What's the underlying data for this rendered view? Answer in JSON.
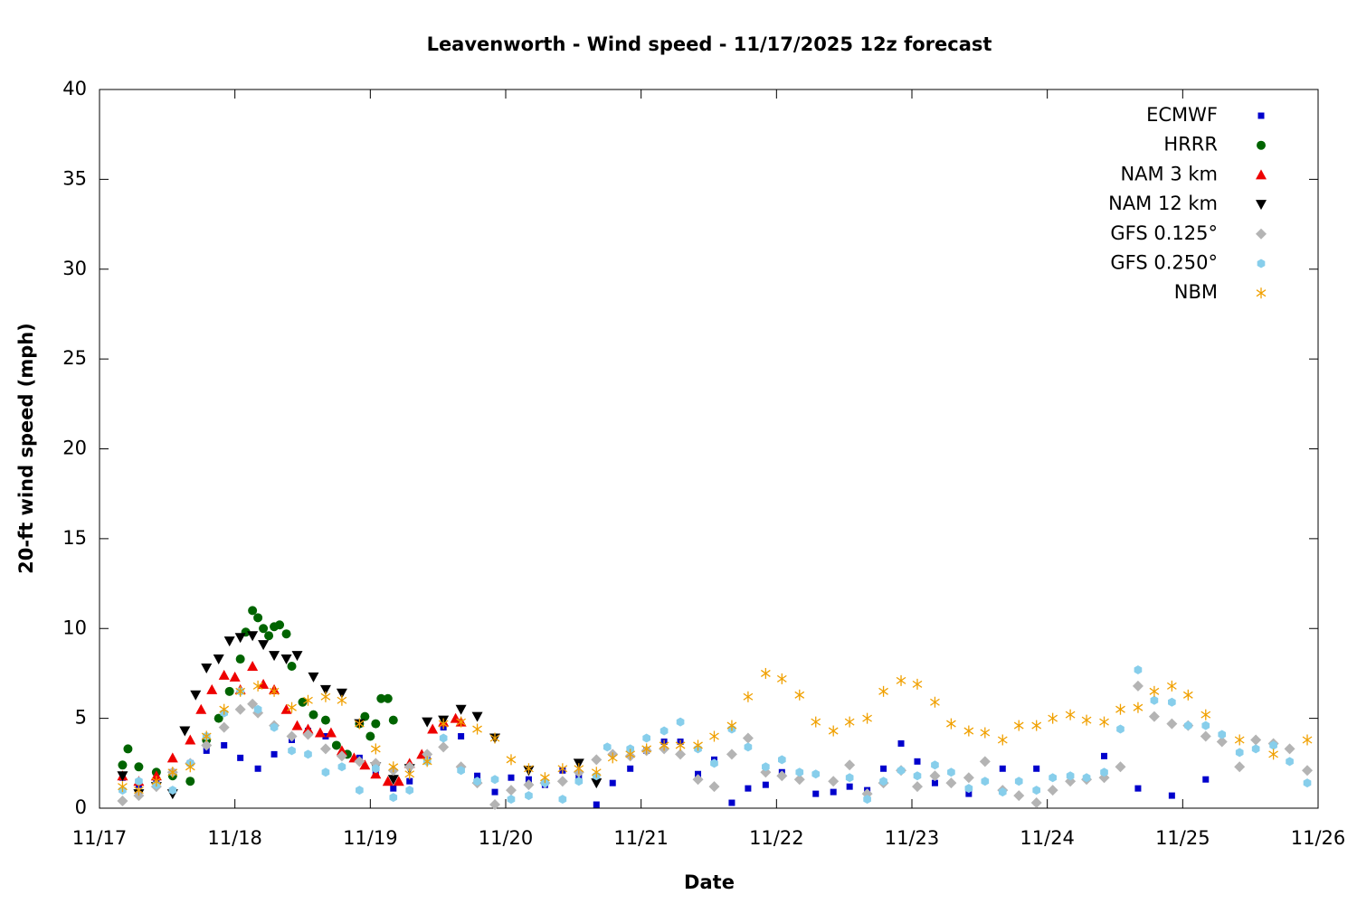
{
  "chart_data": {
    "type": "scatter",
    "title": "Leavenworth - Wind speed - 11/17/2025 12z forecast",
    "x_label": "Date",
    "y_label": "20-ft wind speed (mph)",
    "xlim": [
      17,
      26
    ],
    "xticks": [
      {
        "value": 17,
        "label": "11/17"
      },
      {
        "value": 18,
        "label": "11/18"
      },
      {
        "value": 19,
        "label": "11/19"
      },
      {
        "value": 20,
        "label": "11/20"
      },
      {
        "value": 21,
        "label": "11/21"
      },
      {
        "value": 22,
        "label": "11/22"
      },
      {
        "value": 23,
        "label": "11/23"
      },
      {
        "value": 24,
        "label": "11/24"
      },
      {
        "value": 25,
        "label": "11/25"
      },
      {
        "value": 26,
        "label": "11/26"
      }
    ],
    "ylim": [
      0,
      40
    ],
    "yticks": [
      0,
      5,
      10,
      15,
      20,
      25,
      30,
      35,
      40
    ],
    "legend": "top-right",
    "series": [
      {
        "name": "ECMWF",
        "color": "#0000cc",
        "marker": "square",
        "x": [
          17.17,
          17.29,
          17.42,
          17.54,
          17.67,
          17.79,
          17.92,
          18.04,
          18.17,
          18.29,
          18.42,
          18.54,
          18.67,
          18.79,
          18.92,
          19.04,
          19.17,
          19.29,
          19.42,
          19.54,
          19.67,
          19.79,
          19.92,
          20.04,
          20.17,
          20.29,
          20.42,
          20.54,
          20.67,
          20.79,
          20.92,
          21.04,
          21.17,
          21.29,
          21.42,
          21.54,
          21.67,
          21.79,
          21.92,
          22.04,
          22.29,
          22.42,
          22.54,
          22.67,
          22.79,
          22.92,
          23.04,
          23.17,
          23.42,
          23.67,
          23.92,
          24.42,
          24.67,
          24.92,
          25.17
        ],
        "values": [
          1.7,
          1.3,
          1.5,
          2.0,
          2.5,
          3.2,
          3.5,
          2.8,
          2.2,
          3.0,
          3.8,
          4.3,
          4.0,
          3.0,
          2.8,
          2.0,
          1.1,
          1.5,
          2.8,
          4.5,
          4.0,
          1.8,
          0.9,
          1.7,
          1.6,
          1.3,
          2.1,
          1.8,
          0.2,
          1.4,
          2.2,
          3.2,
          3.7,
          3.7,
          1.9,
          2.7,
          0.3,
          1.1,
          1.3,
          2.0,
          0.8,
          0.9,
          1.2,
          1.0,
          2.2,
          3.6,
          2.6,
          1.4,
          0.8,
          2.2,
          2.2,
          2.9,
          1.1,
          0.7,
          1.6
        ]
      },
      {
        "name": "HRRR",
        "color": "#006400",
        "marker": "circle",
        "x": [
          17.17,
          17.21,
          17.29,
          17.42,
          17.54,
          17.67,
          17.79,
          17.88,
          17.96,
          18.04,
          18.08,
          18.13,
          18.17,
          18.21,
          18.25,
          18.29,
          18.33,
          18.38,
          18.42,
          18.5,
          18.58,
          18.67,
          18.75,
          18.83,
          18.92,
          18.96,
          19.0,
          19.04,
          19.08,
          19.13,
          19.17
        ],
        "values": [
          2.4,
          3.3,
          2.3,
          2.0,
          1.8,
          1.5,
          3.8,
          5.0,
          6.5,
          8.3,
          9.8,
          11.0,
          10.6,
          10.0,
          9.6,
          10.1,
          10.2,
          9.7,
          7.9,
          5.9,
          5.2,
          4.9,
          3.5,
          3.0,
          4.7,
          5.1,
          4.0,
          4.7,
          6.1,
          6.1,
          4.9
        ]
      },
      {
        "name": "NAM 3 km",
        "color": "#ee0000",
        "marker": "triangle",
        "x": [
          17.17,
          17.29,
          17.42,
          17.54,
          17.67,
          17.75,
          17.83,
          17.92,
          18.0,
          18.04,
          18.13,
          18.21,
          18.29,
          18.38,
          18.46,
          18.54,
          18.63,
          18.71,
          18.79,
          18.88,
          18.96,
          19.04,
          19.13,
          19.21,
          19.29,
          19.38,
          19.46,
          19.54,
          19.63,
          19.67
        ],
        "values": [
          1.8,
          1.5,
          1.8,
          2.8,
          3.8,
          5.5,
          6.6,
          7.4,
          7.3,
          6.6,
          7.9,
          6.9,
          6.6,
          5.5,
          4.6,
          4.4,
          4.2,
          4.2,
          3.2,
          2.8,
          2.4,
          1.9,
          1.5,
          1.5,
          2.5,
          3.0,
          4.4,
          4.8,
          5.0,
          4.8
        ]
      },
      {
        "name": "NAM 12 km",
        "color": "#000000",
        "marker": "triangle-down",
        "x": [
          17.17,
          17.29,
          17.42,
          17.54,
          17.63,
          17.71,
          17.79,
          17.88,
          17.96,
          18.04,
          18.13,
          18.21,
          18.29,
          18.38,
          18.46,
          18.58,
          18.67,
          18.79,
          18.92,
          19.04,
          19.17,
          19.29,
          19.42,
          19.54,
          19.67,
          19.79,
          19.92,
          20.17,
          20.54,
          20.67
        ],
        "values": [
          1.8,
          0.8,
          1.2,
          0.8,
          4.3,
          6.3,
          7.8,
          8.3,
          9.3,
          9.5,
          9.6,
          9.1,
          8.5,
          8.3,
          8.5,
          7.3,
          6.6,
          6.4,
          4.7,
          2.3,
          1.6,
          2.2,
          4.8,
          4.9,
          5.5,
          5.1,
          3.9,
          2.1,
          2.5,
          1.4
        ]
      },
      {
        "name": "GFS 0.125°",
        "color": "#b4b4b4",
        "marker": "diamond",
        "x": [
          17.17,
          17.29,
          17.42,
          17.54,
          17.67,
          17.79,
          17.92,
          18.04,
          18.13,
          18.17,
          18.29,
          18.42,
          18.54,
          18.67,
          18.79,
          18.92,
          19.04,
          19.17,
          19.29,
          19.42,
          19.54,
          19.67,
          19.79,
          19.92,
          20.04,
          20.17,
          20.29,
          20.42,
          20.54,
          20.67,
          20.79,
          20.92,
          21.04,
          21.17,
          21.29,
          21.42,
          21.54,
          21.67,
          21.79,
          21.92,
          22.04,
          22.17,
          22.42,
          22.54,
          22.67,
          22.79,
          22.92,
          23.04,
          23.17,
          23.29,
          23.42,
          23.54,
          23.67,
          23.79,
          23.92,
          24.04,
          24.17,
          24.29,
          24.42,
          24.54,
          24.67,
          24.79,
          24.92,
          25.04,
          25.17,
          25.29,
          25.42,
          25.54,
          25.67,
          25.79,
          25.92
        ],
        "values": [
          0.4,
          0.7,
          1.2,
          2.0,
          2.5,
          3.5,
          4.5,
          5.5,
          5.8,
          5.3,
          4.6,
          4.0,
          4.1,
          3.3,
          2.9,
          2.6,
          2.5,
          2.1,
          2.3,
          3.0,
          3.4,
          2.3,
          1.4,
          0.2,
          1.0,
          1.3,
          1.4,
          1.5,
          2.0,
          2.7,
          3.0,
          2.9,
          3.2,
          3.3,
          3.0,
          1.6,
          1.2,
          3.0,
          3.9,
          2.0,
          1.8,
          1.6,
          1.5,
          2.4,
          0.8,
          1.4,
          2.1,
          1.2,
          1.8,
          1.4,
          1.7,
          2.6,
          1.0,
          0.7,
          0.3,
          1.0,
          1.5,
          1.6,
          1.7,
          2.3,
          6.8,
          5.1,
          4.7,
          4.6,
          4.0,
          3.7,
          2.3,
          3.8,
          3.6,
          3.3,
          2.1
        ]
      },
      {
        "name": "GFS 0.250°",
        "color": "#87ceeb",
        "marker": "hexagon",
        "x": [
          17.17,
          17.29,
          17.42,
          17.54,
          17.67,
          17.79,
          17.92,
          18.04,
          18.17,
          18.29,
          18.42,
          18.54,
          18.67,
          18.79,
          18.92,
          19.04,
          19.17,
          19.29,
          19.42,
          19.54,
          19.67,
          19.79,
          19.92,
          20.04,
          20.17,
          20.29,
          20.42,
          20.54,
          20.67,
          20.75,
          20.92,
          21.04,
          21.17,
          21.29,
          21.42,
          21.54,
          21.67,
          21.79,
          21.92,
          22.04,
          22.17,
          22.29,
          22.54,
          22.67,
          22.79,
          22.92,
          23.04,
          23.17,
          23.29,
          23.42,
          23.54,
          23.67,
          23.79,
          23.92,
          24.04,
          24.17,
          24.29,
          24.42,
          24.54,
          24.67,
          24.79,
          24.92,
          25.04,
          25.17,
          25.29,
          25.42,
          25.54,
          25.67,
          25.79,
          25.92
        ],
        "values": [
          1.0,
          1.5,
          1.3,
          1.0,
          2.5,
          4.0,
          5.3,
          6.5,
          5.5,
          4.5,
          3.2,
          3.0,
          2.0,
          2.3,
          1.0,
          2.2,
          0.6,
          1.0,
          2.6,
          3.9,
          2.1,
          1.5,
          1.6,
          0.5,
          0.7,
          1.4,
          0.5,
          1.5,
          1.8,
          3.4,
          3.3,
          3.9,
          4.3,
          4.8,
          3.3,
          2.5,
          4.4,
          3.4,
          2.3,
          2.7,
          2.0,
          1.9,
          1.7,
          0.5,
          1.5,
          2.1,
          1.8,
          2.4,
          2.0,
          1.1,
          1.5,
          0.9,
          1.5,
          1.0,
          1.7,
          1.8,
          1.7,
          2.0,
          4.4,
          7.7,
          6.0,
          5.9,
          4.6,
          4.6,
          4.1,
          3.1,
          3.3,
          3.5,
          2.6,
          1.4
        ]
      },
      {
        "name": "NBM",
        "color": "#f0a000",
        "marker": "asterisk",
        "x": [
          17.17,
          17.29,
          17.42,
          17.54,
          17.67,
          17.79,
          17.92,
          18.04,
          18.17,
          18.29,
          18.42,
          18.54,
          18.67,
          18.79,
          18.92,
          19.04,
          19.17,
          19.29,
          19.42,
          19.54,
          19.67,
          19.79,
          19.92,
          20.04,
          20.17,
          20.29,
          20.42,
          20.54,
          20.67,
          20.79,
          20.92,
          21.04,
          21.17,
          21.29,
          21.42,
          21.54,
          21.67,
          21.79,
          21.92,
          22.04,
          22.17,
          22.29,
          22.42,
          22.54,
          22.67,
          22.79,
          22.92,
          23.04,
          23.17,
          23.29,
          23.42,
          23.54,
          23.67,
          23.79,
          23.92,
          24.04,
          24.17,
          24.29,
          24.42,
          24.54,
          24.67,
          24.79,
          24.92,
          25.04,
          25.17,
          25.42,
          25.67,
          25.92
        ],
        "values": [
          1.2,
          1.0,
          1.5,
          2.0,
          2.3,
          4.0,
          5.5,
          6.5,
          6.8,
          6.5,
          5.6,
          6.0,
          6.2,
          6.0,
          4.7,
          3.3,
          2.3,
          1.9,
          2.6,
          4.7,
          4.8,
          4.4,
          3.9,
          2.7,
          2.2,
          1.7,
          2.2,
          2.2,
          2.0,
          2.8,
          3.0,
          3.3,
          3.5,
          3.5,
          3.5,
          4.0,
          4.6,
          6.2,
          7.5,
          7.2,
          6.3,
          4.8,
          4.3,
          4.8,
          5.0,
          6.5,
          7.1,
          6.9,
          5.9,
          4.7,
          4.3,
          4.2,
          3.8,
          4.6,
          4.6,
          5.0,
          5.2,
          4.9,
          4.8,
          5.5,
          5.6,
          6.5,
          6.8,
          6.3,
          5.2,
          3.8,
          3.0,
          3.8
        ]
      }
    ]
  }
}
